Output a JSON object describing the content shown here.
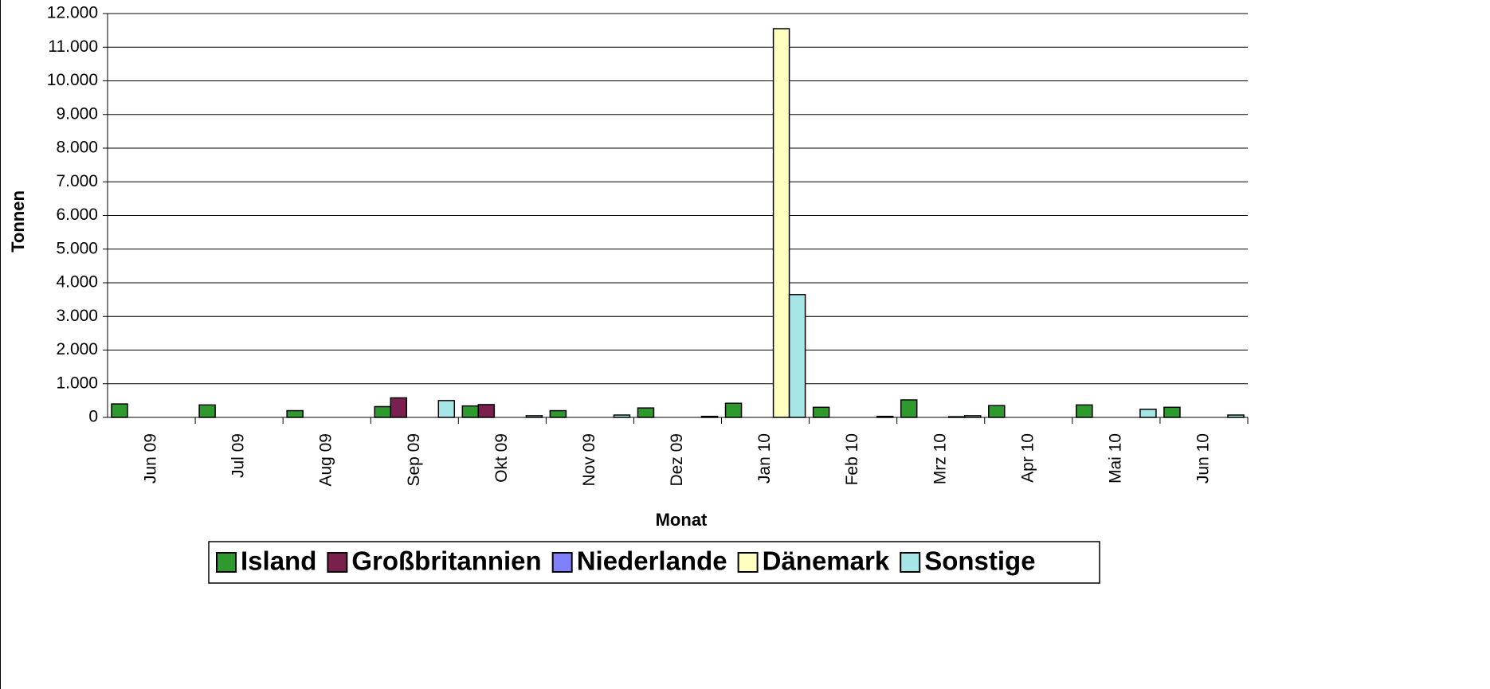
{
  "chart_data": {
    "type": "bar",
    "x_label": "Monat",
    "y_label": "Tonnen",
    "categories": [
      "Jun 09",
      "Jul 09",
      "Aug 09",
      "Sep 09",
      "Okt 09",
      "Nov 09",
      "Dez 09",
      "Jan 10",
      "Feb 10",
      "Mrz 10",
      "Apr 10",
      "Mai 10",
      "Jun 10"
    ],
    "series": [
      {
        "name": "Island",
        "color": "#2e9a2e",
        "values": [
          400,
          370,
          200,
          320,
          340,
          200,
          280,
          420,
          300,
          520,
          350,
          370,
          300
        ]
      },
      {
        "name": "Großbritannien",
        "color": "#7b1f4f",
        "values": [
          0,
          0,
          0,
          580,
          380,
          0,
          0,
          0,
          0,
          0,
          0,
          0,
          0
        ]
      },
      {
        "name": "Niederlande",
        "color": "#8080ff",
        "values": [
          0,
          0,
          0,
          0,
          0,
          0,
          0,
          0,
          0,
          0,
          0,
          0,
          0
        ]
      },
      {
        "name": "Dänemark",
        "color": "#ffffc0",
        "values": [
          0,
          0,
          0,
          0,
          0,
          0,
          0,
          11550,
          0,
          20,
          0,
          0,
          0
        ]
      },
      {
        "name": "Sonstige",
        "color": "#a6e6e6",
        "values": [
          0,
          0,
          0,
          500,
          50,
          70,
          30,
          3650,
          30,
          50,
          0,
          240,
          70
        ]
      }
    ],
    "ylim": [
      0,
      12000
    ],
    "yticks": [
      0,
      {
        "value": 1000,
        "label": "1.000"
      },
      {
        "value": 2000,
        "label": "2.000"
      },
      {
        "value": 3000,
        "label": "3.000"
      },
      {
        "value": 4000,
        "label": "4.000"
      },
      {
        "value": 5000,
        "label": "5.000"
      },
      {
        "value": 6000,
        "label": "6.000"
      },
      {
        "value": 7000,
        "label": "7.000"
      },
      {
        "value": 8000,
        "label": "8.000"
      },
      {
        "value": 9000,
        "label": "9.000"
      },
      {
        "value": 10000,
        "label": "10.000"
      },
      {
        "value": 11000,
        "label": "11.000"
      },
      {
        "value": 12000,
        "label": "12.000"
      }
    ],
    "grid": true,
    "legend": "bottom"
  }
}
